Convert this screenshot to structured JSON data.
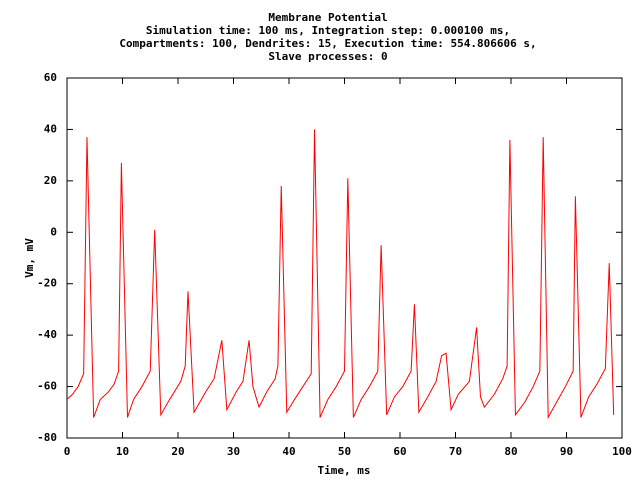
{
  "chart_data": {
    "type": "line",
    "title": [
      "Membrane Potential",
      "Simulation time: 100 ms, Integration step: 0.000100 ms,",
      "Compartments: 100, Dendrites: 15, Execution time: 554.806606 s,",
      "Slave processes: 0"
    ],
    "x_label": "Time, ms",
    "y_label": "Vm, mV",
    "xlim": [
      0,
      100
    ],
    "ylim": [
      -80,
      60
    ],
    "xticks": [
      0,
      10,
      20,
      30,
      40,
      50,
      60,
      70,
      80,
      90,
      100
    ],
    "yticks": [
      -80,
      -60,
      -40,
      -20,
      0,
      20,
      40,
      60
    ],
    "grid": false,
    "series": [
      {
        "color": "#ff0000",
        "x": [
          0,
          1,
          2,
          3,
          3.6,
          4.8,
          6,
          7.5,
          8.5,
          9.3,
          9.8,
          10.9,
          12,
          13.5,
          15,
          15.8,
          16.9,
          18.5,
          20.5,
          21.3,
          21.8,
          22.9,
          25,
          26.5,
          27.9,
          28.8,
          30.5,
          31.7,
          32.8,
          33.5,
          34.6,
          36,
          37.5,
          38,
          38.6,
          39.6,
          41,
          42.5,
          44,
          44.6,
          45.6,
          47,
          48.5,
          50,
          50.6,
          51.6,
          53,
          54.5,
          56,
          56.6,
          57.6,
          59,
          60.5,
          62,
          62.6,
          63.4,
          65,
          66.5,
          67.5,
          68.3,
          69.2,
          70.5,
          72.5,
          73.8,
          74.5,
          75.2,
          77,
          78.5,
          79.3,
          79.8,
          80.8,
          82.5,
          84,
          85.2,
          85.8,
          86.7,
          88.5,
          89.8,
          91.2,
          91.6,
          92.6,
          94,
          95.5,
          97,
          97.7,
          98.5
        ],
        "values": [
          -65,
          -63,
          -60,
          -55,
          37,
          -72,
          -65,
          -62,
          -59,
          -54,
          27,
          -72,
          -65,
          -60,
          -54,
          1,
          -71,
          -65,
          -58,
          -52,
          -23,
          -70,
          -62,
          -57,
          -42,
          -69,
          -62,
          -58,
          -42,
          -60,
          -68,
          -62,
          -57,
          -52,
          18,
          -70,
          -65,
          -60,
          -55,
          40,
          -72,
          -65,
          -60,
          -54,
          21,
          -72,
          -65,
          -60,
          -54,
          -5,
          -71,
          -64,
          -60,
          -54,
          -28,
          -70,
          -64,
          -58,
          -48,
          -47,
          -69,
          -63,
          -58,
          -37,
          -64,
          -68,
          -63,
          -57,
          -52,
          36,
          -71,
          -66,
          -60,
          -54,
          37,
          -72,
          -65,
          -60,
          -54,
          14,
          -72,
          -64,
          -59,
          -53,
          -12,
          -71
        ]
      }
    ]
  }
}
